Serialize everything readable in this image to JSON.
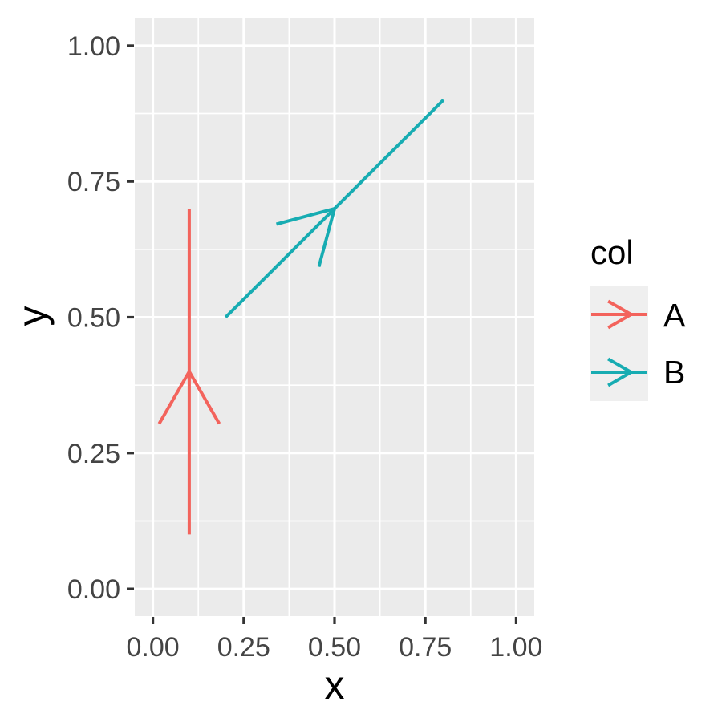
{
  "chart_data": {
    "type": "segment-arrows",
    "title": "",
    "xlabel": "x",
    "ylabel": "y",
    "xlim": [
      0,
      1
    ],
    "ylim": [
      0,
      1
    ],
    "expansion": 0.05,
    "grid": {
      "major": true,
      "minor": true,
      "gridlines_on": true
    },
    "x_ticks": [
      {
        "value": 0.0,
        "label": "0.00"
      },
      {
        "value": 0.25,
        "label": "0.25"
      },
      {
        "value": 0.5,
        "label": "0.50"
      },
      {
        "value": 0.75,
        "label": "0.75"
      },
      {
        "value": 1.0,
        "label": "1.00"
      }
    ],
    "y_ticks": [
      {
        "value": 0.0,
        "label": "0.00"
      },
      {
        "value": 0.25,
        "label": "0.25"
      },
      {
        "value": 0.5,
        "label": "0.50"
      },
      {
        "value": 0.75,
        "label": "0.75"
      },
      {
        "value": 1.0,
        "label": "1.00"
      }
    ],
    "minor_ticks": [
      0.125,
      0.375,
      0.625,
      0.875
    ],
    "series": [
      {
        "name": "A",
        "color": "#F3635C",
        "x": 0.1,
        "y": 0.1,
        "xend": 0.1,
        "yend": 0.7,
        "arrow_position": 0.5,
        "arrow_angle_deg": 30
      },
      {
        "name": "B",
        "color": "#17ACB2",
        "x": 0.2,
        "y": 0.5,
        "xend": 0.8,
        "yend": 0.9,
        "arrow_position": 0.5,
        "arrow_angle_deg": 30
      }
    ],
    "legend": {
      "title": "col",
      "position": "right",
      "entries": [
        {
          "label": "A",
          "color": "#F3635C"
        },
        {
          "label": "B",
          "color": "#17ACB2"
        }
      ]
    }
  },
  "style": {
    "page_bg": "#FFFFFF",
    "panel_bg": "#EBEBEB",
    "grid_color": "#FFFFFF",
    "tick_color": "#333333",
    "tick_label_color": "#444444",
    "text_color": "#000000",
    "legend_key_bg": "#EFEFEF"
  }
}
